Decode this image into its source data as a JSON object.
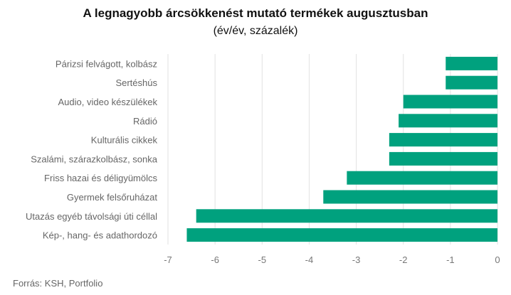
{
  "chart_data": {
    "type": "bar",
    "orientation": "horizontal",
    "title": "A legnagyobb árcsökkenést mutató termékek augusztusban",
    "subtitle": "(év/év, százalék)",
    "categories": [
      "Párizsi felvágott, kolbász",
      "Sertéshús",
      "Audio, video készülékek",
      "Rádió",
      "Kulturális cikkek",
      "Szalámi, szárazkolbász, sonka",
      "Friss hazai és déligyümölcs",
      "Gyermek felsőruházat",
      "Utazás egyéb távolsági úti céllal",
      "Kép-, hang- és adathordozó"
    ],
    "values": [
      -1.1,
      -1.1,
      -2.0,
      -2.1,
      -2.3,
      -2.3,
      -3.2,
      -3.7,
      -6.4,
      -6.6
    ],
    "xlim": [
      -7,
      0
    ],
    "xticks": [
      "-7",
      "-6",
      "-5",
      "-4",
      "-3",
      "-2",
      "-1",
      "0"
    ],
    "grid": true,
    "bar_color": "#00a17e",
    "source": "Forrás: KSH, Portfolio"
  }
}
